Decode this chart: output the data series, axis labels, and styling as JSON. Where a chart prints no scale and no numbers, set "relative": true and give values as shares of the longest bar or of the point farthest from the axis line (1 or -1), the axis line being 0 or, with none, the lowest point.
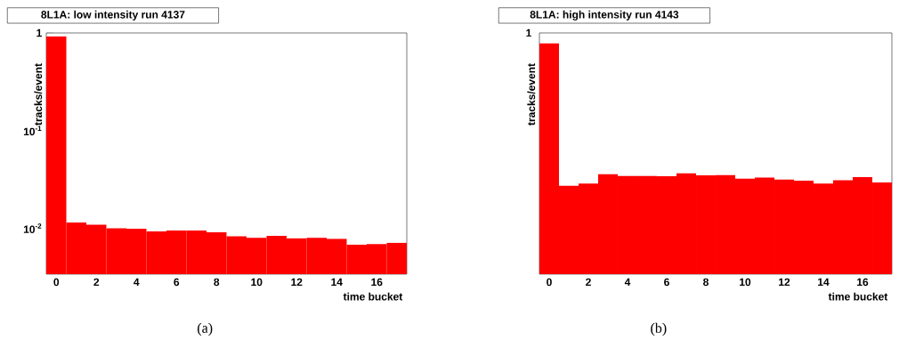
{
  "chart_data": [
    {
      "type": "histogram",
      "title": "8L1A: low intensity run 4137",
      "xlabel": "time bucket",
      "ylabel": "tracks/event",
      "annotations": [
        "(a)"
      ],
      "bins": [
        -0.5,
        0.5,
        1.5,
        2.5,
        3.5,
        4.5,
        5.5,
        6.5,
        7.5,
        8.5,
        9.5,
        10.5,
        11.5,
        12.5,
        13.5,
        14.5,
        15.5,
        16.5,
        17.5
      ],
      "values": [
        0.92,
        0.0115,
        0.0109,
        0.01,
        0.0099,
        0.0093,
        0.0095,
        0.0095,
        0.0091,
        0.0083,
        0.008,
        0.0084,
        0.0079,
        0.008,
        0.0078,
        0.0068,
        0.0069,
        0.0071
      ],
      "color": "#ff0000",
      "log": "y",
      "xlim": [
        -0.5,
        17.5
      ],
      "xticks": [
        0,
        2,
        4,
        6,
        8,
        10,
        12,
        14,
        16
      ],
      "ylim": [
        0.0034,
        1
      ],
      "yticks": [
        {
          "value": 0.01,
          "label": "10$^{-2}$"
        },
        {
          "value": 0.1,
          "label": "10$^{-1}$"
        },
        1
      ]
    },
    {
      "type": "bar",
      "title": "8L1A: high intensity run 4143",
      "xlabel": "time bucket",
      "ylabel": "tracks/event",
      "annotations": [
        "(b)",
        "1"
      ],
      "relative": true,
      "categories": [
        "0",
        null,
        "2",
        null,
        "4",
        null,
        "6",
        null,
        "8",
        null,
        "10",
        null,
        "12",
        null,
        "14",
        null,
        "16",
        null
      ],
      "values": [
        1,
        0.383,
        0.392,
        0.433,
        0.425,
        0.425,
        0.424,
        0.437,
        0.428,
        0.429,
        0.414,
        0.418,
        0.41,
        0.405,
        0.392,
        0.407,
        0.42,
        0.397
      ],
      "color": "#ff0000"
    }
  ]
}
